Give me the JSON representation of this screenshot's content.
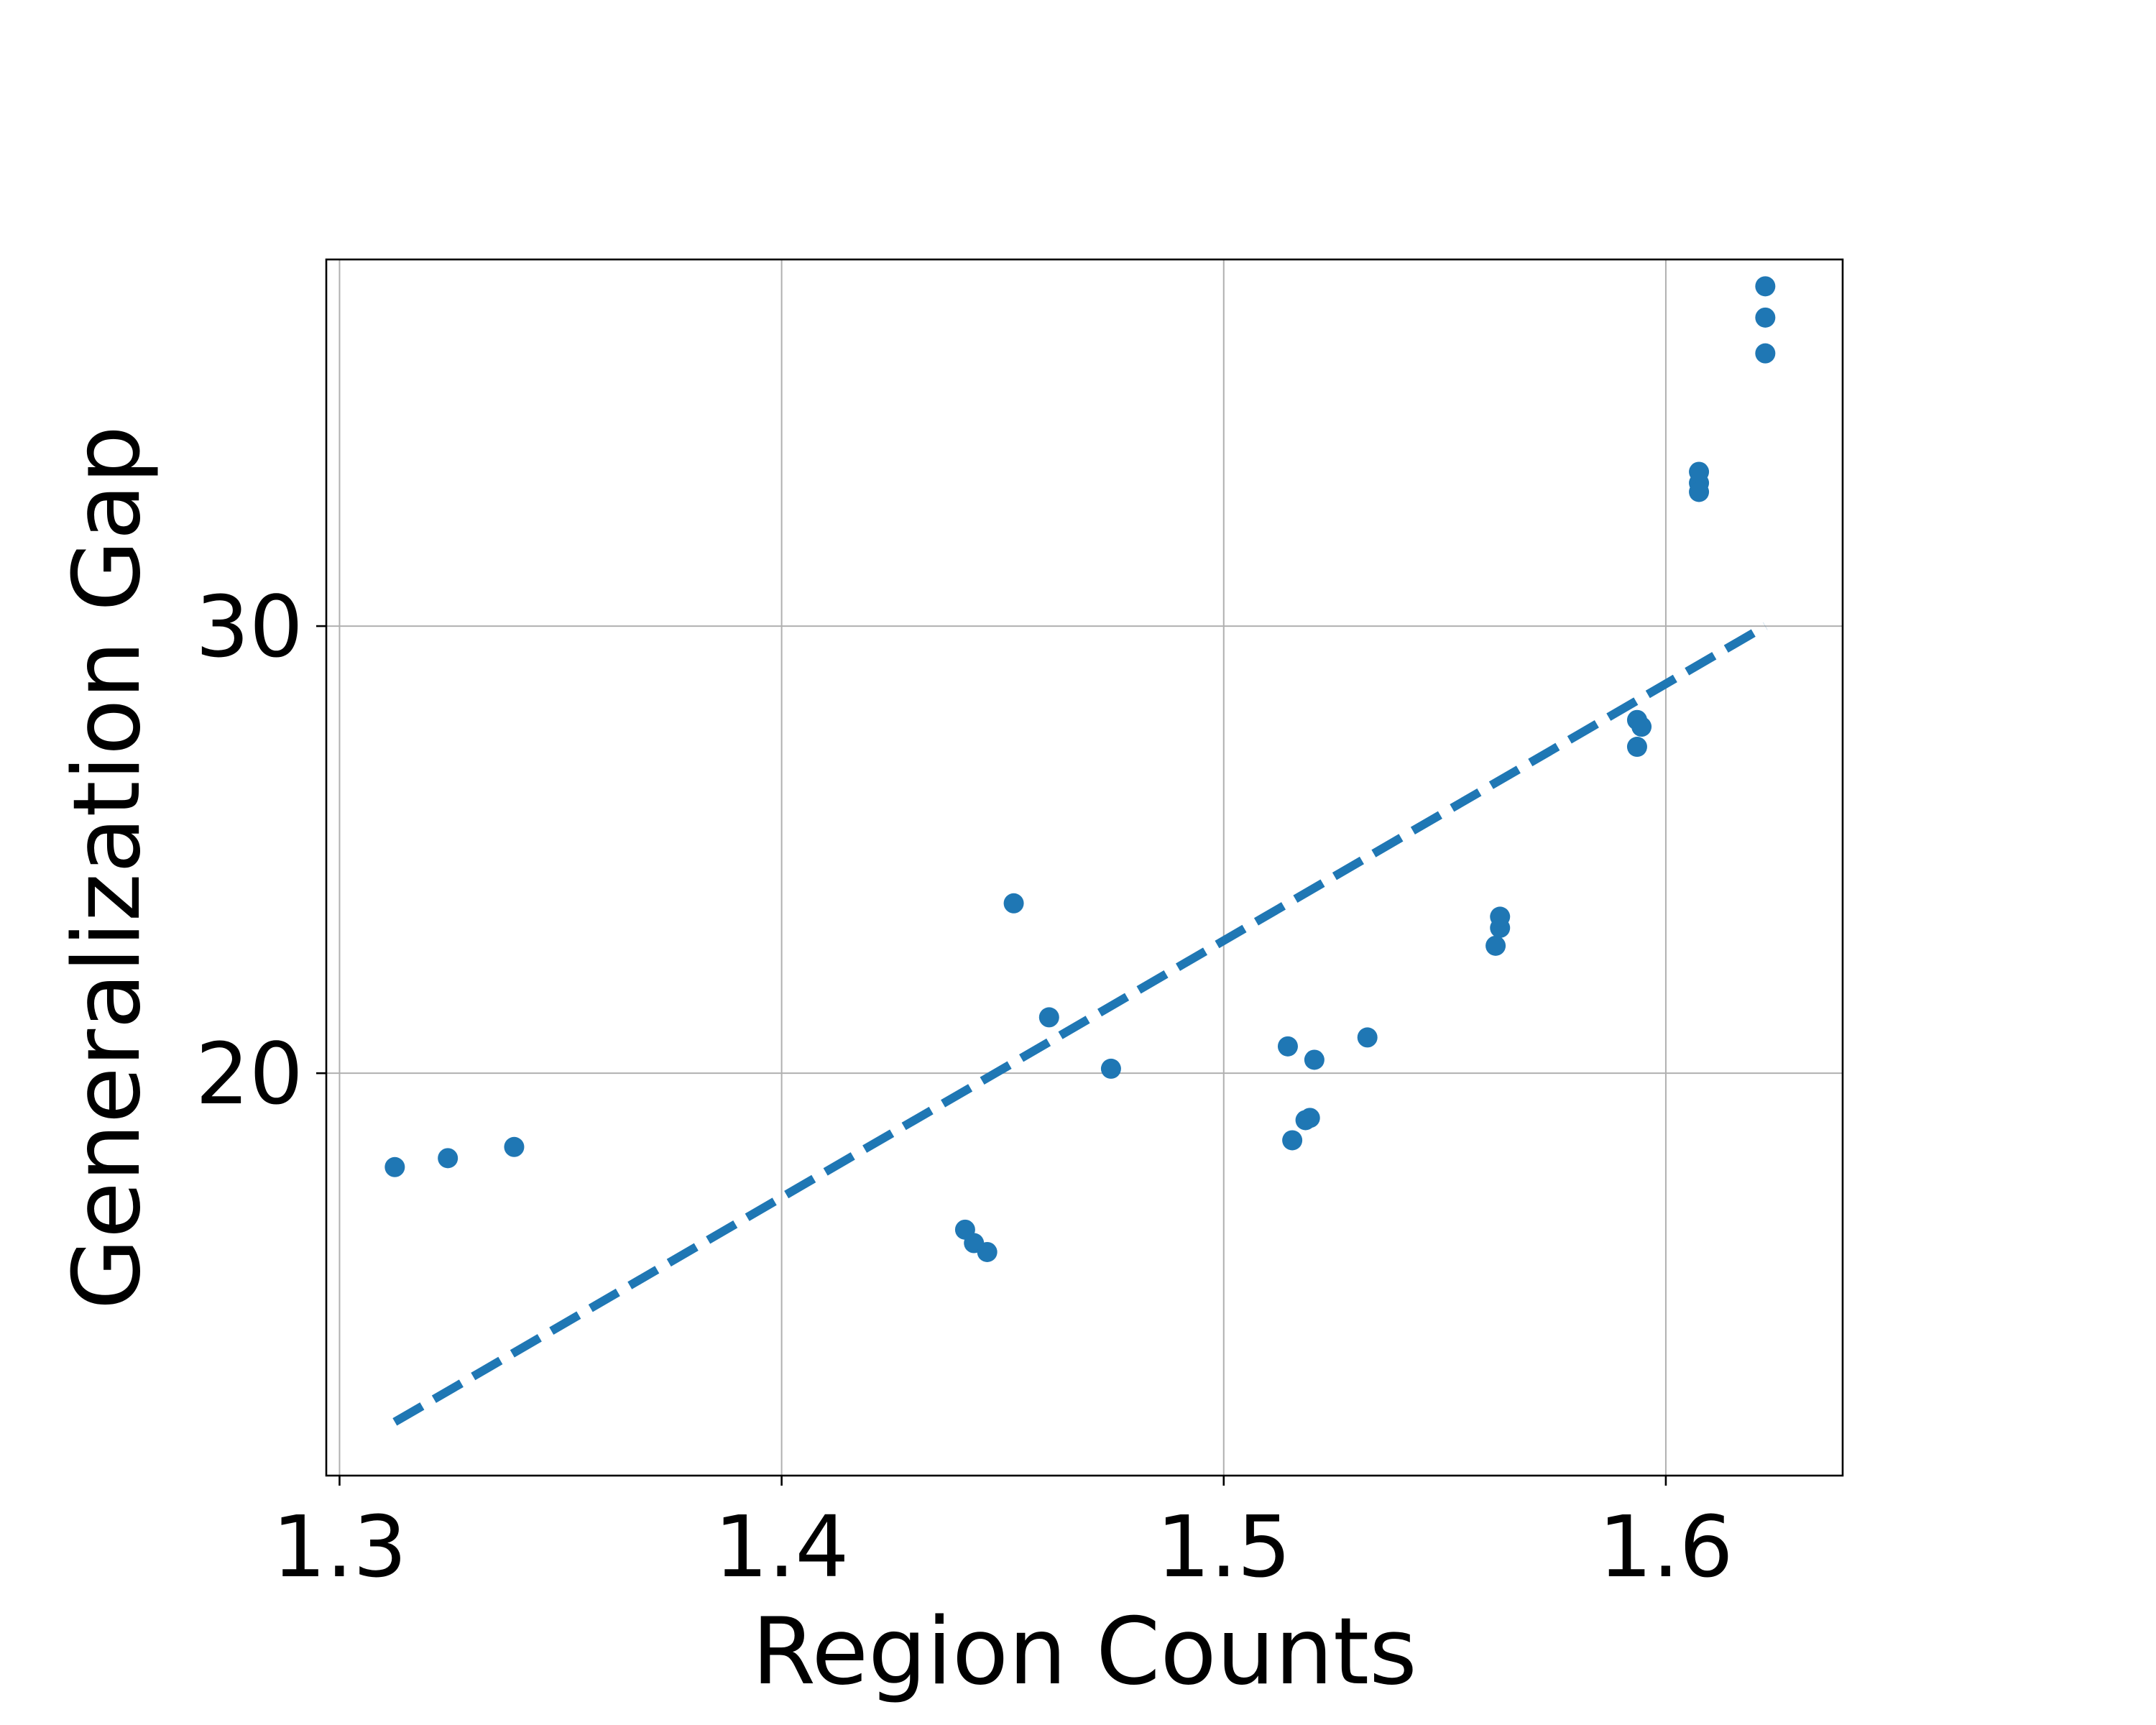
{
  "chart_data": {
    "type": "scatter",
    "title": "",
    "xlabel": "Region Counts",
    "ylabel": "Generalization Gap",
    "xlim": [
      1.297,
      1.64
    ],
    "ylim": [
      11.0,
      38.2
    ],
    "xticks": [
      1.3,
      1.4,
      1.5,
      1.6
    ],
    "xtick_labels": [
      "1.3",
      "1.4",
      "1.5",
      "1.6"
    ],
    "yticks": [
      20,
      30
    ],
    "ytick_labels": [
      "20",
      "30"
    ],
    "grid": true,
    "color": "#1f77b4",
    "points": [
      {
        "x": 1.3125,
        "y": 17.9
      },
      {
        "x": 1.3245,
        "y": 18.1
      },
      {
        "x": 1.3395,
        "y": 18.35
      },
      {
        "x": 1.4415,
        "y": 16.5
      },
      {
        "x": 1.4435,
        "y": 16.2
      },
      {
        "x": 1.4465,
        "y": 16.0
      },
      {
        "x": 1.4525,
        "y": 23.8
      },
      {
        "x": 1.4605,
        "y": 21.25
      },
      {
        "x": 1.4745,
        "y": 20.1
      },
      {
        "x": 1.5145,
        "y": 20.6
      },
      {
        "x": 1.5155,
        "y": 18.5
      },
      {
        "x": 1.5185,
        "y": 18.95
      },
      {
        "x": 1.5195,
        "y": 19.0
      },
      {
        "x": 1.5205,
        "y": 20.3
      },
      {
        "x": 1.5325,
        "y": 20.8
      },
      {
        "x": 1.5615,
        "y": 22.85
      },
      {
        "x": 1.5625,
        "y": 23.25
      },
      {
        "x": 1.5625,
        "y": 23.5
      },
      {
        "x": 1.5935,
        "y": 27.9
      },
      {
        "x": 1.5945,
        "y": 27.75
      },
      {
        "x": 1.5935,
        "y": 27.3
      },
      {
        "x": 1.6075,
        "y": 33.2
      },
      {
        "x": 1.6075,
        "y": 33.0
      },
      {
        "x": 1.6075,
        "y": 33.45
      },
      {
        "x": 1.6225,
        "y": 36.9
      },
      {
        "x": 1.6225,
        "y": 37.6
      },
      {
        "x": 1.6225,
        "y": 36.1
      }
    ],
    "trend_line": {
      "style": "dashed",
      "x": [
        1.3125,
        1.6225
      ],
      "y": [
        12.2,
        30.0
      ]
    }
  }
}
